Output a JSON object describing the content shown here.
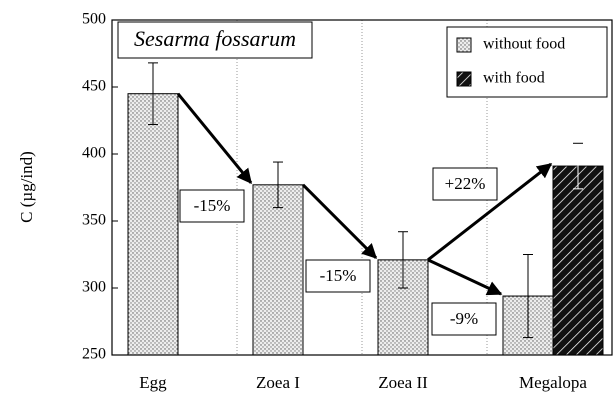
{
  "chart_data": {
    "type": "bar",
    "title": "Sesarma fossarum",
    "ylabel": "C (µg/ind)",
    "categories": [
      "Egg",
      "Zoea I",
      "Zoea II",
      "Megalopa"
    ],
    "series": [
      {
        "name": "without food",
        "color": "#e6e6e6",
        "values": [
          445,
          377,
          321,
          294
        ],
        "errors": [
          23,
          17,
          21,
          31
        ]
      },
      {
        "name": "with food",
        "color": "#111111",
        "values": [
          null,
          null,
          null,
          391
        ],
        "errors": [
          null,
          null,
          null,
          17
        ]
      }
    ],
    "annotations": [
      "-15%",
      "-15%",
      "+22%",
      "-9%"
    ],
    "ylim": [
      250,
      500
    ],
    "yticks": [
      250,
      300,
      350,
      400,
      450,
      500
    ],
    "legend": "upper right"
  }
}
